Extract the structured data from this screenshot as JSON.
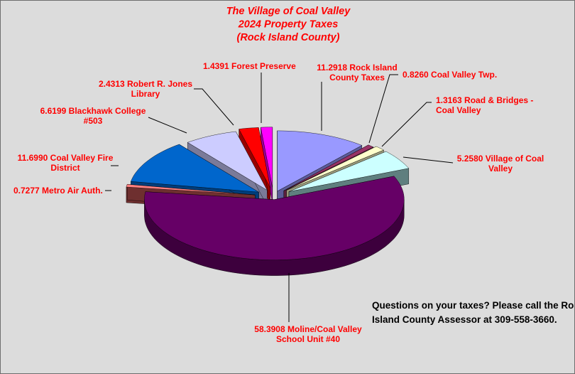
{
  "chart_data": {
    "type": "pie",
    "variant": "3d-exploded",
    "title": [
      "The Village of Coal Valley",
      "2024 Property Taxes",
      "(Rock Island County)"
    ],
    "slices": [
      {
        "value": 11.2918,
        "label": [
          "11.2918 Rock Island",
          "County Taxes"
        ],
        "top": "#9999ff",
        "side": "#5c5c99"
      },
      {
        "value": 0.826,
        "label": [
          "0.8260 Coal Valley Twp."
        ],
        "top": "#993366",
        "side": "#5c1f3d"
      },
      {
        "value": 1.3163,
        "label": [
          "1.3163 Road & Bridges -",
          "Coal Valley"
        ],
        "top": "#ffffcc",
        "side": "#99997a"
      },
      {
        "value": 5.258,
        "label": [
          "5.2580 Village of Coal",
          "Valley"
        ],
        "top": "#ccffff",
        "side": "#5f7f7f"
      },
      {
        "value": 58.3908,
        "label": [
          "58.3908 Moline/Coal Valley",
          "School Unit #40"
        ],
        "top": "#660066",
        "side": "#3d003d"
      },
      {
        "value": 0.7277,
        "label": [
          "0.7277 Metro Air Auth."
        ],
        "top": "#ff8080",
        "side": "#6e2f2f"
      },
      {
        "value": 11.699,
        "label": [
          "11.6990 Coal Valley Fire",
          "District"
        ],
        "top": "#0066cc",
        "side": "#003d7a"
      },
      {
        "value": 6.6199,
        "label": [
          "6.6199 Blackhawk College",
          "#503"
        ],
        "top": "#ccccff",
        "side": "#7a7a99"
      },
      {
        "value": 2.4313,
        "label": [
          "2.4313 Robert R. Jones",
          "Library"
        ],
        "top": "#ff0000",
        "side": "#990000"
      },
      {
        "value": 1.4391,
        "label": [
          "1.4391 Forest Preserve"
        ],
        "top": "#ff00ff",
        "side": "#990099"
      }
    ],
    "note": [
      "Questions on your taxes? Please call the Rock",
      "Island County Assessor at 309-558-3660."
    ]
  }
}
